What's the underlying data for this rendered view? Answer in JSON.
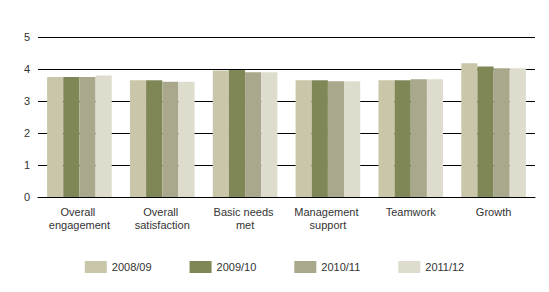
{
  "chart_data": {
    "type": "bar",
    "categories": [
      "Overall engagement",
      "Overall satisfaction",
      "Basic needs met",
      "Management support",
      "Teamwork",
      "Growth"
    ],
    "series": [
      {
        "name": "2008/09",
        "color": "#c9c6aa",
        "values": [
          3.75,
          3.65,
          3.95,
          3.65,
          3.65,
          4.18
        ]
      },
      {
        "name": "2009/10",
        "color": "#7f8757",
        "values": [
          3.75,
          3.65,
          3.97,
          3.65,
          3.65,
          4.08
        ]
      },
      {
        "name": "2010/11",
        "color": "#aaa88c",
        "values": [
          3.75,
          3.6,
          3.9,
          3.62,
          3.68,
          4.02
        ]
      },
      {
        "name": "2011/12",
        "color": "#dddccd",
        "values": [
          3.8,
          3.6,
          3.9,
          3.62,
          3.68,
          4.02
        ]
      }
    ],
    "ylim": [
      0,
      5
    ],
    "yticks": [
      0,
      1,
      2,
      3,
      4,
      5
    ],
    "grid": true,
    "legend": "bottom"
  }
}
